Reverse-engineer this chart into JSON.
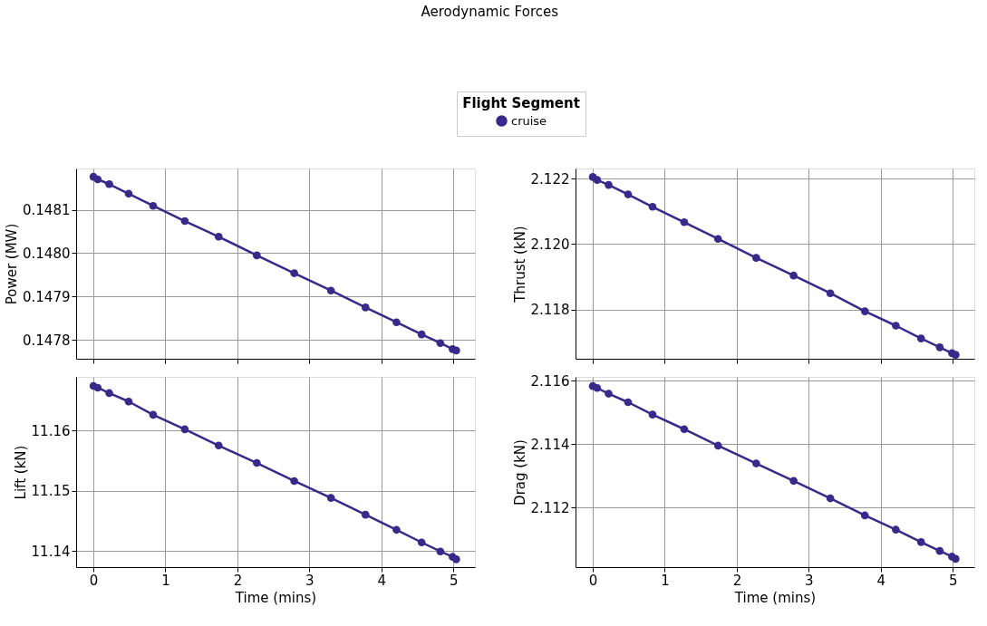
{
  "chart_data": [
    {
      "type": "line",
      "title": "Aerodynamic Forces",
      "legend_title": "Flight Segment",
      "legend": "top",
      "ylabel": "Power (MW)",
      "tick_labels": "y",
      "grid": true,
      "marker": "circle",
      "line_style": "solid",
      "x": [
        0,
        0.06,
        0.22,
        0.49,
        0.83,
        1.27,
        1.74,
        2.27,
        2.79,
        3.3,
        3.78,
        4.21,
        4.56,
        4.82,
        4.99,
        5.04
      ],
      "xlim": [
        -0.24,
        5.3
      ],
      "xticks": [
        0,
        1,
        2,
        3,
        4,
        5
      ],
      "ylim": [
        0.147757,
        0.148195
      ],
      "yticks": [
        0.1478,
        0.1479,
        {
          "value": 0.148,
          "label": "0.1480"
        },
        0.1481
      ],
      "series": [
        {
          "name": "cruise",
          "color": "#38298a",
          "values": [
            0.148176,
            0.14817,
            0.148159,
            0.148137,
            0.148109,
            0.148074,
            0.148038,
            0.147995,
            0.147954,
            0.147914,
            0.147875,
            0.147841,
            0.147813,
            0.147793,
            0.147779,
            0.147776
          ]
        }
      ]
    },
    {
      "type": "line",
      "ylabel": "Thrust (kN)",
      "tick_labels": "y",
      "grid": true,
      "marker": "circle",
      "line_style": "solid",
      "x": [
        0,
        0.06,
        0.22,
        0.49,
        0.83,
        1.27,
        1.74,
        2.27,
        2.79,
        3.3,
        3.78,
        4.21,
        4.56,
        4.82,
        4.99,
        5.04
      ],
      "xlim": [
        -0.24,
        5.3
      ],
      "xticks": [
        0,
        1,
        2,
        3,
        4,
        5
      ],
      "ylim": [
        2.1165,
        2.12231
      ],
      "yticks": [
        2.118,
        {
          "value": 2.12,
          "label": "2.120"
        },
        2.122
      ],
      "series": [
        {
          "name": "cruise",
          "color": "#38298a",
          "values": [
            2.12205,
            2.12196,
            2.12181,
            2.12152,
            2.12114,
            2.12067,
            2.12016,
            2.11958,
            2.11904,
            2.1185,
            2.11795,
            2.11751,
            2.11712,
            2.11685,
            2.11667,
            2.11662
          ]
        }
      ]
    },
    {
      "type": "line",
      "ylabel": "Lift (kN)",
      "xlabel": "Time (mins)",
      "grid": true,
      "marker": "circle",
      "line_style": "solid",
      "x": [
        0,
        0.06,
        0.22,
        0.49,
        0.83,
        1.27,
        1.74,
        2.27,
        2.79,
        3.3,
        3.78,
        4.21,
        4.56,
        4.82,
        4.99,
        5.04
      ],
      "xlim": [
        -0.24,
        5.3
      ],
      "xticks": [
        0,
        1,
        2,
        3,
        4,
        5
      ],
      "ylim": [
        11.1373,
        11.1689
      ],
      "yticks": [
        11.14,
        11.15,
        11.16
      ],
      "series": [
        {
          "name": "cruise",
          "color": "#38298a",
          "values": [
            11.1674,
            11.1671,
            11.1662,
            11.1648,
            11.1626,
            11.1602,
            11.1575,
            11.1546,
            11.1516,
            11.1488,
            11.146,
            11.1435,
            11.1414,
            11.1399,
            11.139,
            11.1386
          ]
        }
      ]
    },
    {
      "type": "line",
      "ylabel": "Drag (kN)",
      "xlabel": "Time (mins)",
      "grid": true,
      "marker": "circle",
      "line_style": "solid",
      "x": [
        0,
        0.06,
        0.22,
        0.49,
        0.83,
        1.27,
        1.74,
        2.27,
        2.79,
        3.3,
        3.78,
        4.21,
        4.56,
        4.82,
        4.99,
        5.04
      ],
      "xlim": [
        -0.24,
        5.3
      ],
      "xticks": [
        0,
        1,
        2,
        3,
        4,
        5
      ],
      "ylim": [
        2.11012,
        2.11612
      ],
      "yticks": [
        2.112,
        2.114,
        2.116
      ],
      "series": [
        {
          "name": "cruise",
          "color": "#38298a",
          "values": [
            2.11583,
            2.11577,
            2.11559,
            2.11532,
            2.11493,
            2.11447,
            2.11395,
            2.11339,
            2.11284,
            2.11229,
            2.11175,
            2.1113,
            2.11091,
            2.11063,
            2.11045,
            2.11038
          ]
        }
      ]
    }
  ]
}
